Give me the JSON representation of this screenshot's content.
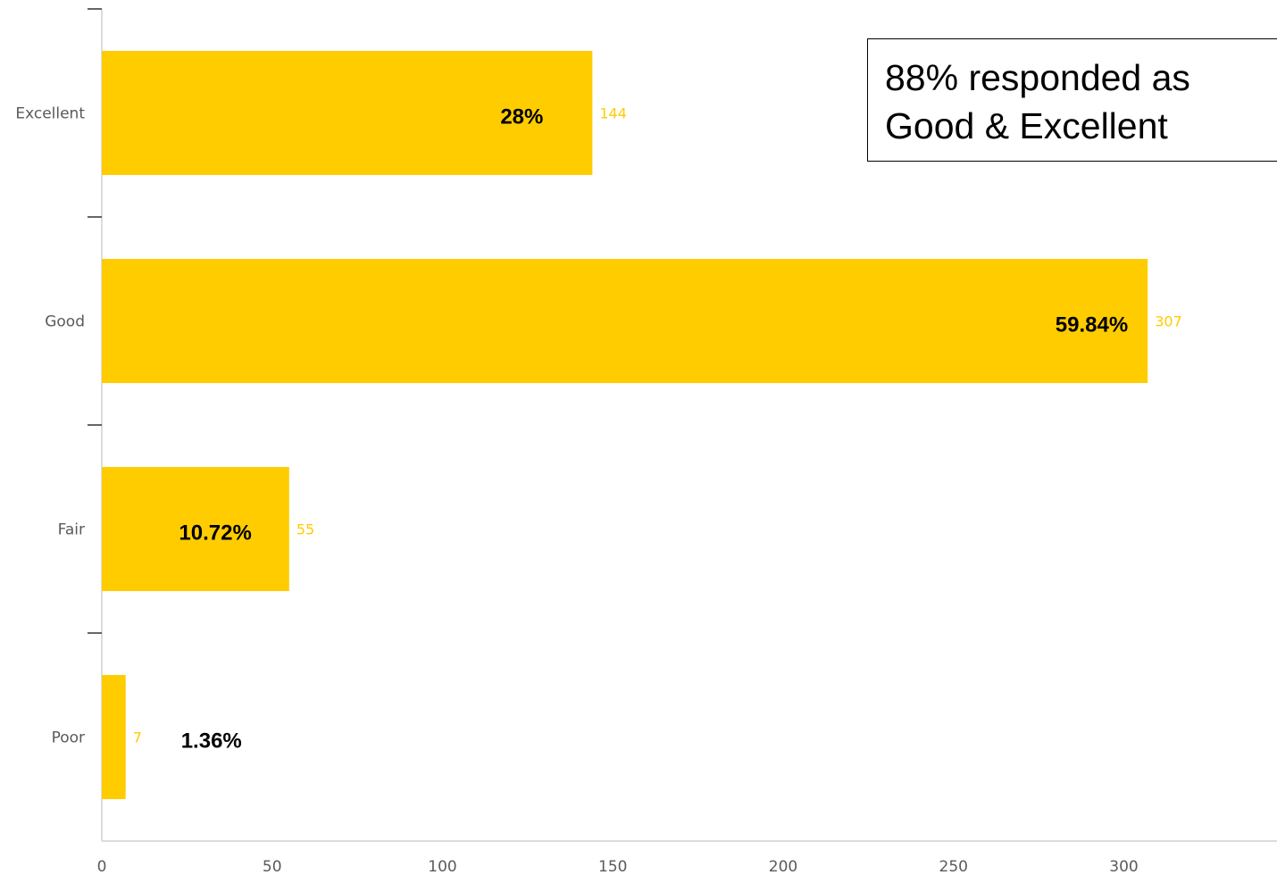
{
  "chart_data": {
    "type": "bar",
    "orientation": "horizontal",
    "categories": [
      "Excellent",
      "Good",
      "Fair",
      "Poor"
    ],
    "values": [
      144,
      307,
      55,
      7
    ],
    "percent_labels": [
      "28%",
      "59.84%",
      "10.72%",
      "1.36%"
    ],
    "xlim": [
      0,
      345
    ],
    "x_ticks": [
      0,
      50,
      100,
      150,
      200,
      250,
      300
    ],
    "grid": false,
    "bar_color": "#FFCC00",
    "value_label_color": "#FFCC00",
    "annotation": {
      "lines": [
        "88% responded as",
        "Good & Excellent"
      ],
      "placement": "top-right"
    }
  }
}
